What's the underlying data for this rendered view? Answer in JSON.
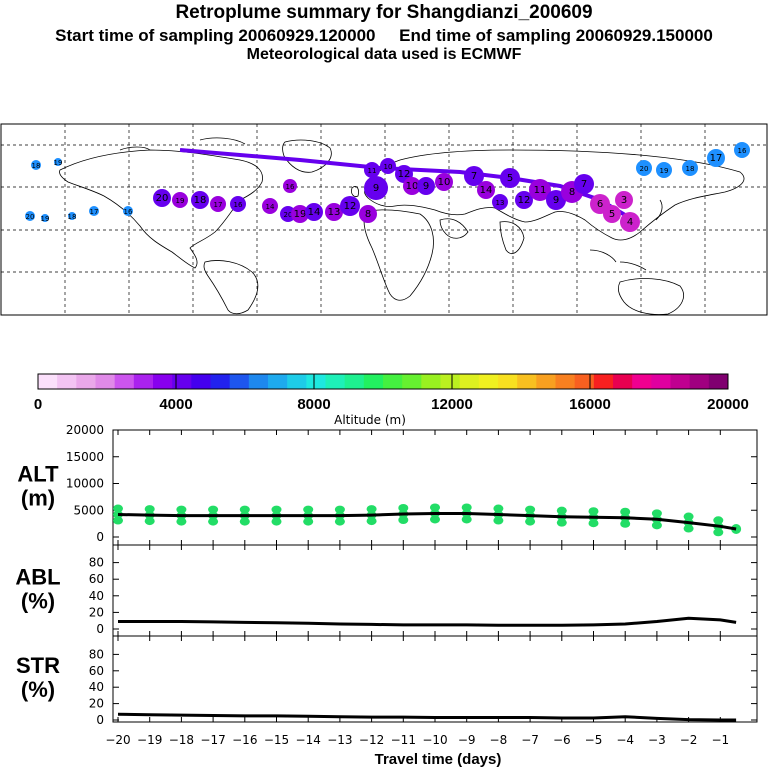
{
  "header": {
    "title": "Retroplume summary for Shangdianzi_200609",
    "subtitle": "Start time of sampling 20060929.120000     End time of sampling 20060929.150000",
    "meteo": "Meteorological data used is ECMWF"
  },
  "colors": {
    "plume_markers": [
      "#9900dd",
      "#6600ee",
      "#3a3ae0",
      "#1e90ff",
      "#cc22cc",
      "#ee44ee"
    ],
    "alt_markers": "#22dd66",
    "line": "#000000"
  },
  "map_markers": [
    {
      "label": "18"
    },
    {
      "label": "19"
    },
    {
      "label": "20"
    },
    {
      "label": "16"
    },
    {
      "label": "15"
    },
    {
      "label": "14"
    },
    {
      "label": "13"
    },
    {
      "label": "12"
    },
    {
      "label": "11"
    },
    {
      "label": "10"
    },
    {
      "label": "9"
    },
    {
      "label": "8"
    },
    {
      "label": "7"
    },
    {
      "label": "6"
    },
    {
      "label": "5"
    },
    {
      "label": "4"
    },
    {
      "label": "3"
    },
    {
      "label": "2"
    },
    {
      "label": "1"
    },
    {
      "label": "17"
    }
  ],
  "colorbar": {
    "tick_labels": [
      "0",
      "4000",
      "8000",
      "12000",
      "16000",
      "20000"
    ],
    "label": "Altitude (m)",
    "colors": [
      "#fbe0fb",
      "#f3c4f3",
      "#eaa8ea",
      "#e08ae8",
      "#cc55ee",
      "#aa22ee",
      "#8800ee",
      "#6600ee",
      "#4400ee",
      "#2222ee",
      "#1e56ee",
      "#1e88ee",
      "#1eaaee",
      "#1ecce8",
      "#1ee8e0",
      "#1ef0b8",
      "#1ef090",
      "#22f060",
      "#44f040",
      "#66f030",
      "#99f020",
      "#bbf020",
      "#ddf020",
      "#f0f020",
      "#f8e020",
      "#f8c020",
      "#f8a020",
      "#f88020",
      "#f86020",
      "#f82020",
      "#e80050",
      "#f00090",
      "#e000a0",
      "#c00090",
      "#a00080",
      "#800070"
    ]
  },
  "chart_data": [
    {
      "type": "line",
      "panel": "ALT",
      "ylabel": "ALT\n(m)",
      "ylabel_lines": [
        "ALT",
        "(m)"
      ],
      "ylim": [
        0,
        20000
      ],
      "yticks": [
        0,
        5000,
        10000,
        15000,
        20000
      ],
      "ytick_labels": [
        "0",
        "5000",
        "10000",
        "15000",
        "20000"
      ],
      "x": [
        -20,
        -19,
        -18,
        -17,
        -16,
        -15,
        -14,
        -13,
        -12,
        -11,
        -10,
        -9,
        -8,
        -7,
        -6,
        -5,
        -4,
        -3,
        -2,
        -1,
        -0.5
      ],
      "values": [
        4200,
        4100,
        4000,
        4000,
        4000,
        4000,
        4000,
        4000,
        4100,
        4300,
        4400,
        4400,
        4200,
        4000,
        3800,
        3700,
        3600,
        3300,
        2700,
        2000,
        1500
      ]
    },
    {
      "type": "line",
      "panel": "ABL",
      "ylabel_lines": [
        "ABL",
        "(%)"
      ],
      "ylim": [
        0,
        100
      ],
      "yticks": [
        0,
        20,
        40,
        60,
        80
      ],
      "ytick_labels": [
        "0",
        "20",
        "40",
        "60",
        "80"
      ],
      "x": [
        -20,
        -19,
        -18,
        -17,
        -16,
        -15,
        -14,
        -13,
        -12,
        -11,
        -10,
        -9,
        -8,
        -7,
        -6,
        -5,
        -4,
        -3,
        -2,
        -1,
        -0.5
      ],
      "values": [
        9,
        9,
        9,
        8.5,
        8,
        7.5,
        7,
        6,
        5.5,
        5,
        5,
        5,
        4.5,
        4.5,
        4.5,
        5,
        6,
        9,
        13,
        11,
        8
      ]
    },
    {
      "type": "line",
      "panel": "STR",
      "ylabel_lines": [
        "STR",
        "(%)"
      ],
      "ylim": [
        0,
        100
      ],
      "yticks": [
        0,
        20,
        40,
        60,
        80
      ],
      "ytick_labels": [
        "0",
        "20",
        "40",
        "60",
        "80"
      ],
      "x": [
        -20,
        -19,
        -18,
        -17,
        -16,
        -15,
        -14,
        -13,
        -12,
        -11,
        -10,
        -9,
        -8,
        -7,
        -6,
        -5,
        -4,
        -3,
        -2,
        -1,
        -0.5
      ],
      "values": [
        7,
        6.5,
        6,
        5.5,
        5,
        5,
        4.5,
        4,
        3.5,
        3.5,
        3,
        3,
        3,
        3,
        2.5,
        2.5,
        4,
        2,
        0.5,
        0,
        0
      ]
    }
  ],
  "xaxis": {
    "xlim": [
      -20,
      0
    ],
    "ticks": [
      -20,
      -19,
      -18,
      -17,
      -16,
      -15,
      -14,
      -13,
      -12,
      -11,
      -10,
      -9,
      -8,
      -7,
      -6,
      -5,
      -4,
      -3,
      -2,
      -1
    ],
    "tick_labels": [
      "−20",
      "−19",
      "−18",
      "−17",
      "−16",
      "−15",
      "−14",
      "−13",
      "−12",
      "−11",
      "−10",
      "−9",
      "−8",
      "−7",
      "−6",
      "−5",
      "−4",
      "−3",
      "−2",
      "−1"
    ],
    "label": "Travel time (days)"
  }
}
